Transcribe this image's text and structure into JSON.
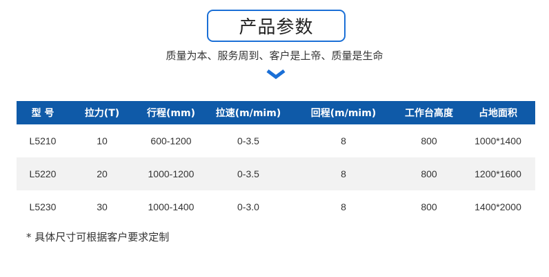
{
  "title": "产品参数",
  "slogan": "质量为本、服务周到、客户是上帝、质量是生命",
  "chevron_icon": "chevron-down-icon",
  "accent": "#0f5aa8",
  "table": {
    "headers": [
      "型 号",
      "拉力(T)",
      "行程(mm)",
      "拉速(m/mim)",
      "回程(m/mim)",
      "工作台高度",
      "占地面积"
    ],
    "rows": [
      [
        "L5210",
        "10",
        "600-1200",
        "0-3.5",
        "8",
        "800",
        "1000*1400"
      ],
      [
        "L5220",
        "20",
        "1000-1200",
        "0-3.5",
        "8",
        "800",
        "1200*1600"
      ],
      [
        "L5230",
        "30",
        "1000-1400",
        "0-3.0",
        "8",
        "800",
        "1400*2000"
      ]
    ]
  },
  "note": "* 具体尺寸可根据客户要求定制"
}
